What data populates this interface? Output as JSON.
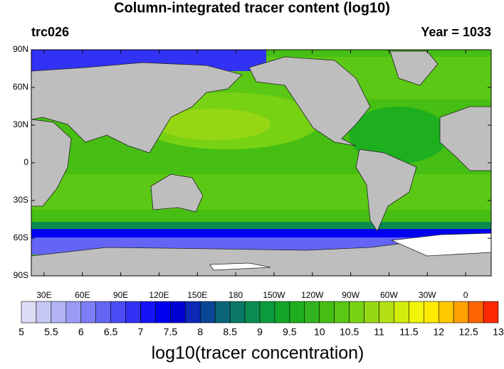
{
  "map": {
    "title": "Column-integrated tracer content (log10)",
    "left_subtitle": "trc026",
    "right_subtitle": "Year = 1033",
    "xlim": [
      20,
      380
    ],
    "ylim": [
      -90,
      90
    ],
    "xticks": [
      {
        "value": 30,
        "label": "30E"
      },
      {
        "value": 60,
        "label": "60E"
      },
      {
        "value": 90,
        "label": "90E"
      },
      {
        "value": 120,
        "label": "120E"
      },
      {
        "value": 150,
        "label": "150E"
      },
      180,
      {
        "value": 210,
        "label": "150W"
      },
      {
        "value": 240,
        "label": "120W"
      },
      {
        "value": 270,
        "label": "90W"
      },
      {
        "value": 300,
        "label": "60W"
      },
      {
        "value": 330,
        "label": "30W"
      },
      {
        "value": 360,
        "label": "0"
      }
    ],
    "yticks": [
      {
        "value": 90,
        "label": "90N"
      },
      {
        "value": 60,
        "label": "60N"
      },
      {
        "value": 30,
        "label": "30N"
      },
      0,
      {
        "value": -30,
        "label": "30S"
      },
      {
        "value": -60,
        "label": "60S"
      },
      {
        "value": -90,
        "label": "90S"
      }
    ],
    "colorbar": {
      "ticks": [
        5,
        5.5,
        6,
        6.5,
        7,
        7.5,
        8,
        8.5,
        9,
        9.5,
        10,
        10.5,
        11,
        11.5,
        12,
        12.5,
        13
      ],
      "colors": [
        "#dcdcf5",
        "#c8c8f5",
        "#b4b4f5",
        "#9a9af5",
        "#7d7df5",
        "#6464f5",
        "#4b4bf5",
        "#3232f5",
        "#1414f5",
        "#0000f0",
        "#0000d2",
        "#0a28b4",
        "#0a4696",
        "#0a6478",
        "#0a7864",
        "#0a8c50",
        "#0a9b3c",
        "#14a528",
        "#1eaf1e",
        "#32b41e",
        "#46be14",
        "#5ac814",
        "#78d214",
        "#96d714",
        "#b4e114",
        "#d2eb0a",
        "#f0f50a",
        "#ffeb00",
        "#ffc800",
        "#ffa000",
        "#ff6400",
        "#ff2800"
      ],
      "title": "log10(tracer concentration)"
    }
  }
}
